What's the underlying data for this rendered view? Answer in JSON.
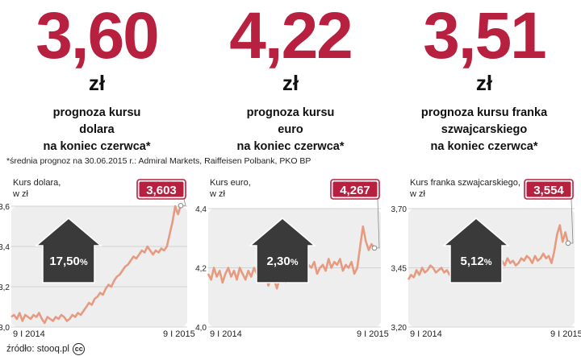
{
  "colors": {
    "accent": "#b8203f",
    "line": "#e69a80",
    "plot_bg": "#eeeeee",
    "arrow": "#3a3a3a"
  },
  "headlines": [
    {
      "value": "3,60",
      "unit": "zł",
      "lines": [
        "prognoza kursu",
        "dolara",
        "na koniec czerwca*"
      ]
    },
    {
      "value": "4,22",
      "unit": "zł",
      "lines": [
        "prognoza kursu",
        "euro",
        "na koniec czerwca*"
      ]
    },
    {
      "value": "3,51",
      "unit": "zł",
      "lines": [
        "prognoza kursu franka",
        "szwajcarskiego",
        "na koniec czerwca*"
      ]
    }
  ],
  "footnote": "*średnia prognoz na 30.06.2015 r.: Admiral Markets, Raiffeisen Polbank, PKO BP",
  "source": "źródło: stooq.pl",
  "source_icon": "cc-by-icon",
  "chart_data": [
    {
      "type": "line",
      "title_lines": [
        "Kurs dolara,",
        "w zł"
      ],
      "xlabels": [
        "9 I 2014",
        "9 I 2015"
      ],
      "yticks": [
        "3,0",
        "3,2",
        "3,4",
        "3,6"
      ],
      "ylim": [
        3.0,
        3.6
      ],
      "last_value": "3,603",
      "change": "17,50",
      "change_unit": "%",
      "values": [
        3.05,
        3.06,
        3.04,
        3.07,
        3.03,
        3.06,
        3.05,
        3.04,
        3.06,
        3.05,
        3.07,
        3.04,
        3.02,
        3.05,
        3.04,
        3.03,
        3.05,
        3.04,
        3.06,
        3.05,
        3.03,
        3.04,
        3.06,
        3.05,
        3.07,
        3.06,
        3.08,
        3.1,
        3.12,
        3.11,
        3.14,
        3.15,
        3.17,
        3.16,
        3.19,
        3.21,
        3.2,
        3.23,
        3.25,
        3.26,
        3.28,
        3.3,
        3.31,
        3.33,
        3.35,
        3.34,
        3.36,
        3.38,
        3.37,
        3.4,
        3.38,
        3.36,
        3.38,
        3.37,
        3.39,
        3.38,
        3.4,
        3.46,
        3.52,
        3.6,
        3.56,
        3.603
      ]
    },
    {
      "type": "line",
      "title_lines": [
        "Kurs euro,",
        "w zł"
      ],
      "xlabels": [
        "9 I 2014",
        "9 I 2015"
      ],
      "yticks": [
        "4,0",
        "4,2",
        "4,4"
      ],
      "ylim": [
        4.0,
        4.4
      ],
      "last_value": "4,267",
      "change": "2,30",
      "change_unit": "%",
      "values": [
        4.18,
        4.16,
        4.2,
        4.17,
        4.19,
        4.15,
        4.18,
        4.2,
        4.17,
        4.19,
        4.16,
        4.2,
        4.18,
        4.16,
        4.19,
        4.17,
        4.2,
        4.18,
        4.16,
        4.19,
        4.18,
        4.14,
        4.17,
        4.16,
        4.13,
        4.17,
        4.18,
        4.15,
        4.19,
        4.17,
        4.16,
        4.18,
        4.2,
        4.22,
        4.19,
        4.21,
        4.2,
        4.22,
        4.18,
        4.2,
        4.21,
        4.19,
        4.23,
        4.2,
        4.22,
        4.21,
        4.23,
        4.19,
        4.21,
        4.2,
        4.22,
        4.18,
        4.2,
        4.27,
        4.34,
        4.29,
        4.26,
        4.28,
        4.267
      ]
    },
    {
      "type": "line",
      "title_lines": [
        "Kurs franka szwajcarskiego,",
        "w zł"
      ],
      "xlabels": [
        "9 I 2014",
        "9 I 2015"
      ],
      "yticks": [
        "3,20",
        "3,45",
        "3,70"
      ],
      "ylim": [
        3.2,
        3.7
      ],
      "last_value": "3,554",
      "change": "5,12",
      "change_unit": "%",
      "values": [
        3.4,
        3.42,
        3.41,
        3.44,
        3.42,
        3.45,
        3.43,
        3.44,
        3.46,
        3.45,
        3.43,
        3.44,
        3.45,
        3.43,
        3.44,
        3.42,
        3.41,
        3.43,
        3.42,
        3.41,
        3.4,
        3.42,
        3.41,
        3.44,
        3.43,
        3.45,
        3.44,
        3.47,
        3.46,
        3.48,
        3.47,
        3.45,
        3.47,
        3.46,
        3.48,
        3.46,
        3.49,
        3.47,
        3.48,
        3.46,
        3.47,
        3.49,
        3.48,
        3.5,
        3.49,
        3.47,
        3.5,
        3.48,
        3.49,
        3.51,
        3.49,
        3.5,
        3.47,
        3.52,
        3.59,
        3.63,
        3.56,
        3.6,
        3.554
      ]
    }
  ]
}
